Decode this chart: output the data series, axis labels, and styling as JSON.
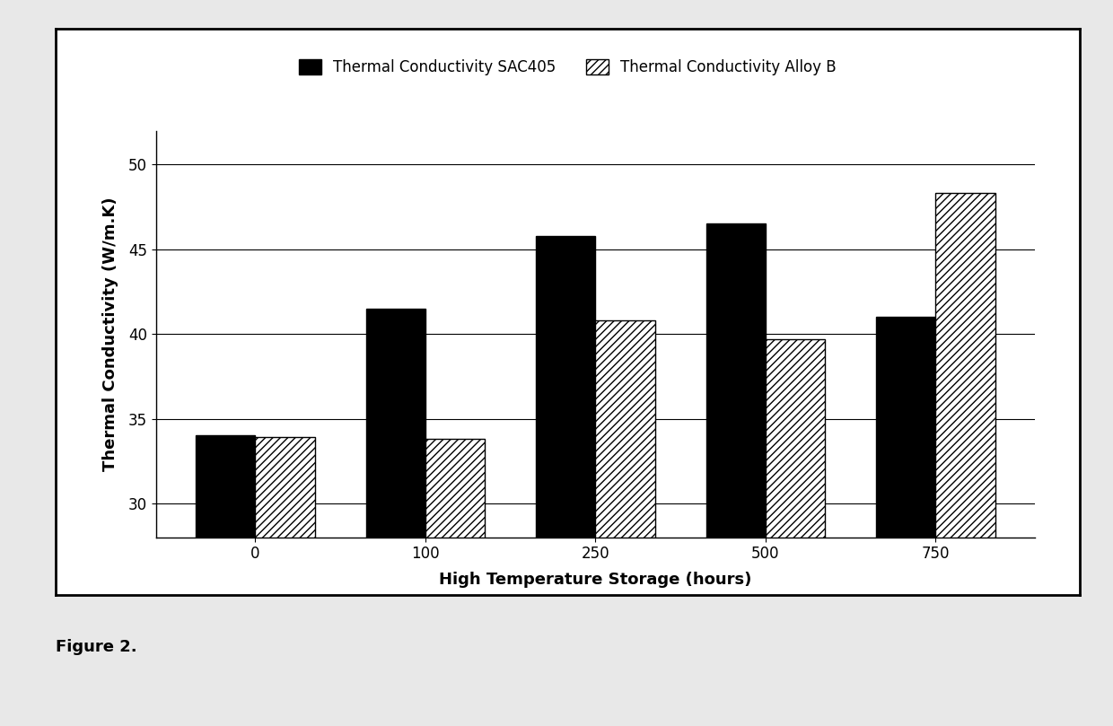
{
  "categories": [
    "0",
    "100",
    "250",
    "500",
    "750"
  ],
  "sac405_values": [
    34.0,
    41.5,
    45.8,
    46.5,
    41.0
  ],
  "alloyB_values": [
    33.9,
    33.8,
    40.8,
    39.7,
    48.3
  ],
  "xlabel": "High Temperature Storage (hours)",
  "ylabel": "Thermal Conductivity (W/m.K)",
  "legend_sac405": "Thermal Conductivity SAC405",
  "legend_alloyB": "Thermal Conductivity Alloy B",
  "ylim": [
    28,
    52
  ],
  "yticks": [
    30,
    35,
    40,
    45,
    50
  ],
  "figure_caption": "Figure 2.",
  "bar_width": 0.35,
  "sac405_color": "#000000",
  "alloyB_facecolor": "#ffffff",
  "alloyB_edgecolor": "#000000",
  "background_color": "#e8e8e8",
  "plot_bg_color": "#ffffff",
  "axis_fontsize": 13,
  "tick_fontsize": 12,
  "legend_fontsize": 12,
  "caption_fontsize": 13
}
